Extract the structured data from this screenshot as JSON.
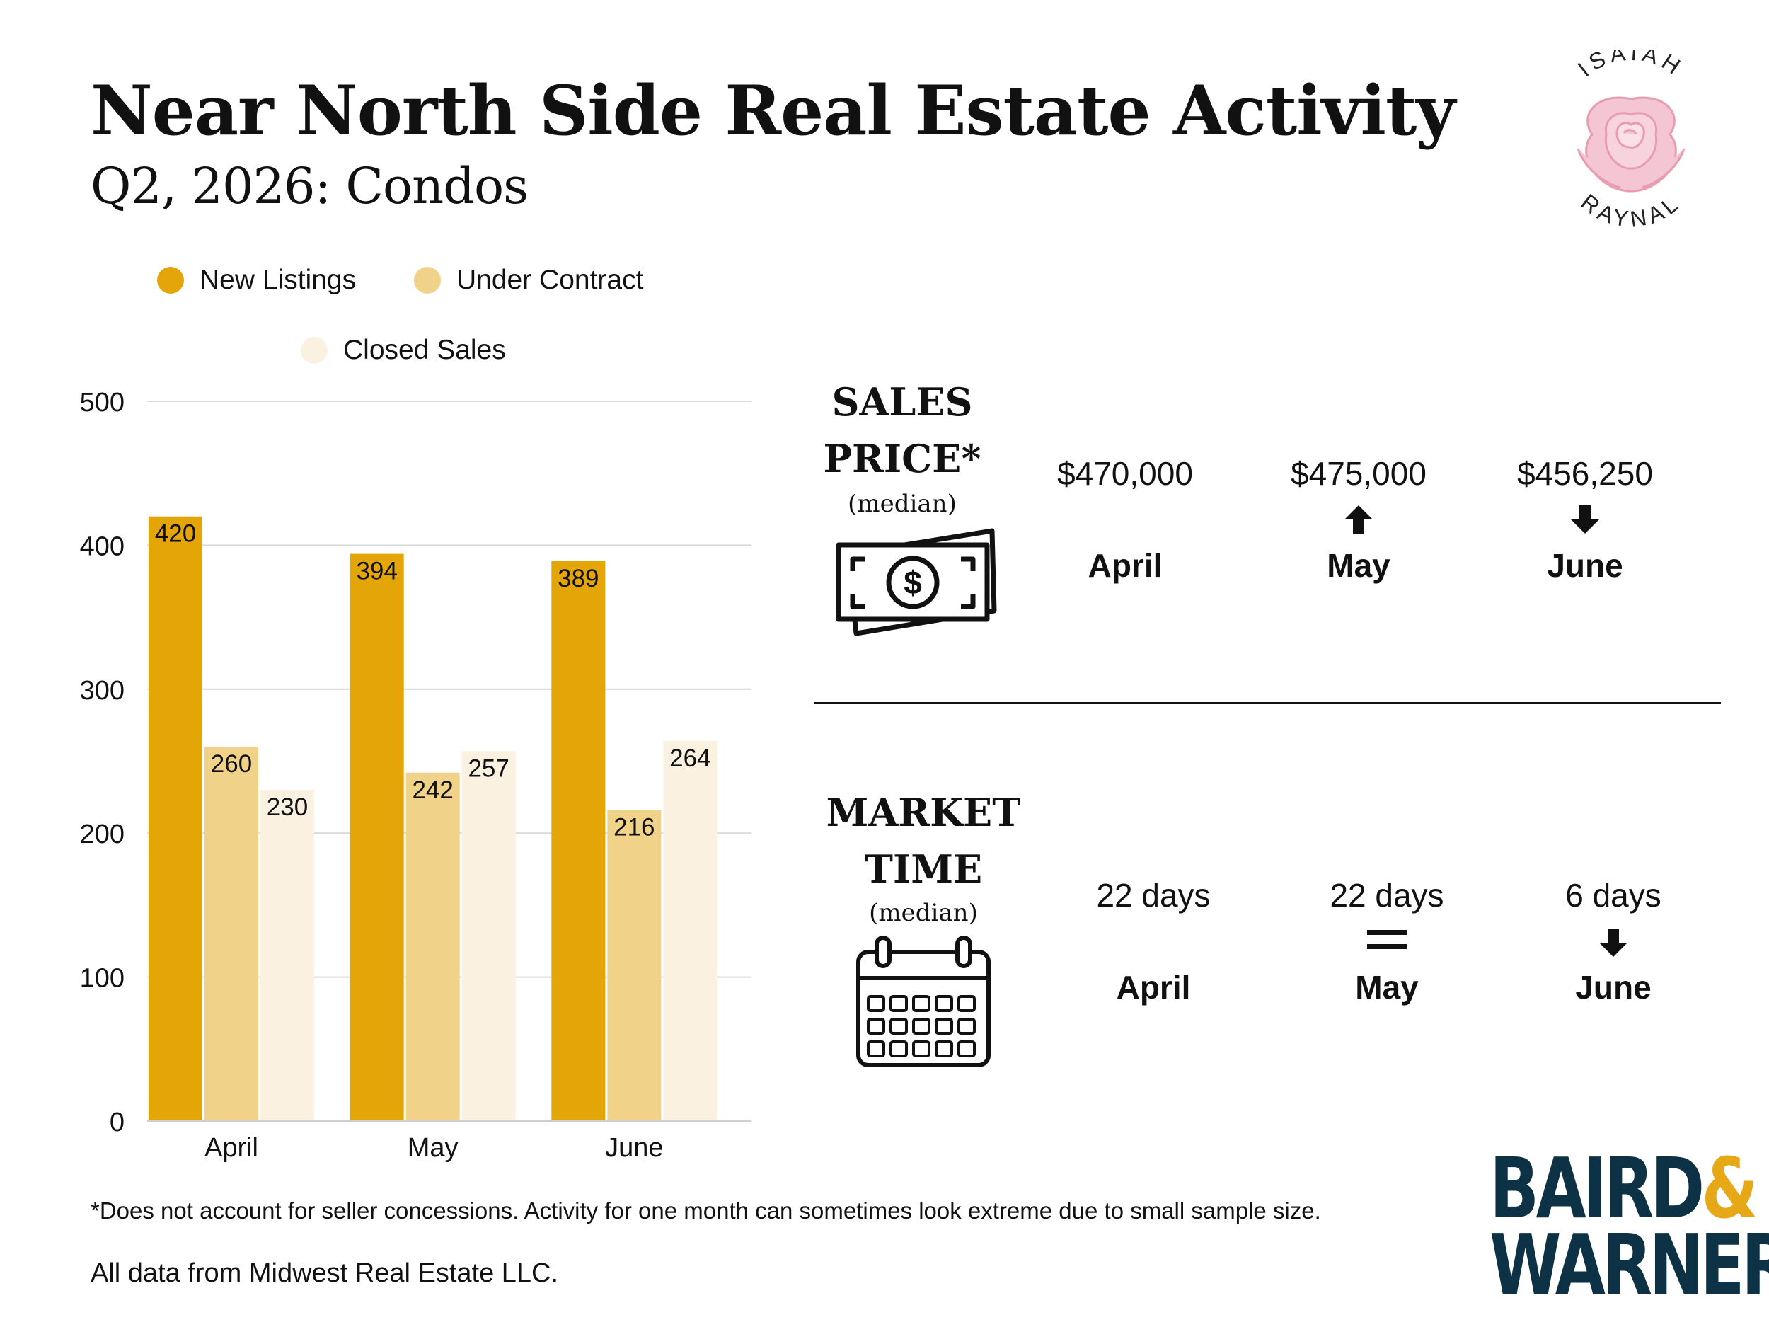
{
  "header": {
    "title": "Near North Side Real Estate Activity",
    "subtitle": "Q2, 2026: Condos"
  },
  "brand": {
    "top_logo_text_top": "ISAIAH",
    "top_logo_text_bottom": "RAYNAL",
    "company_line1": "BAIRD",
    "company_amp": "&",
    "company_line2": "WARNER",
    "company_color": "#0d3245",
    "amp_color": "#e6a817"
  },
  "chart_data": {
    "type": "bar",
    "categories": [
      "April",
      "May",
      "June"
    ],
    "series": [
      {
        "name": "New Listings",
        "values": [
          420,
          394,
          389
        ],
        "color": "#e3a508"
      },
      {
        "name": "Under Contract",
        "values": [
          260,
          242,
          216
        ],
        "color": "#f1d289"
      },
      {
        "name": "Closed Sales",
        "values": [
          230,
          257,
          264
        ],
        "color": "#faf1e1"
      }
    ],
    "ylim": [
      0,
      500
    ],
    "yticks": [
      0,
      100,
      200,
      300,
      400,
      500
    ],
    "grid": true,
    "legend": "top",
    "data_labels": true
  },
  "sales_price": {
    "label_line1": "SALES",
    "label_line2": "PRICE*",
    "note": "(median)",
    "icon": "money-icon",
    "months": [
      {
        "value": "$470,000",
        "month": "April",
        "trend": "none"
      },
      {
        "value": "$475,000",
        "month": "May",
        "trend": "up"
      },
      {
        "value": "$456,250",
        "month": "June",
        "trend": "down"
      }
    ]
  },
  "market_time": {
    "label_line1": "MARKET",
    "label_line2": "TIME",
    "note": "(median)",
    "icon": "calendar-icon",
    "months": [
      {
        "value": "22 days",
        "month": "April",
        "trend": "none"
      },
      {
        "value": "22 days",
        "month": "May",
        "trend": "equal"
      },
      {
        "value": "6 days",
        "month": "June",
        "trend": "down"
      }
    ]
  },
  "footer": {
    "footnote": "*Does not account for seller concessions. Activity for one month can sometimes look extreme due to small sample size.",
    "source": "All data from Midwest Real Estate LLC."
  }
}
